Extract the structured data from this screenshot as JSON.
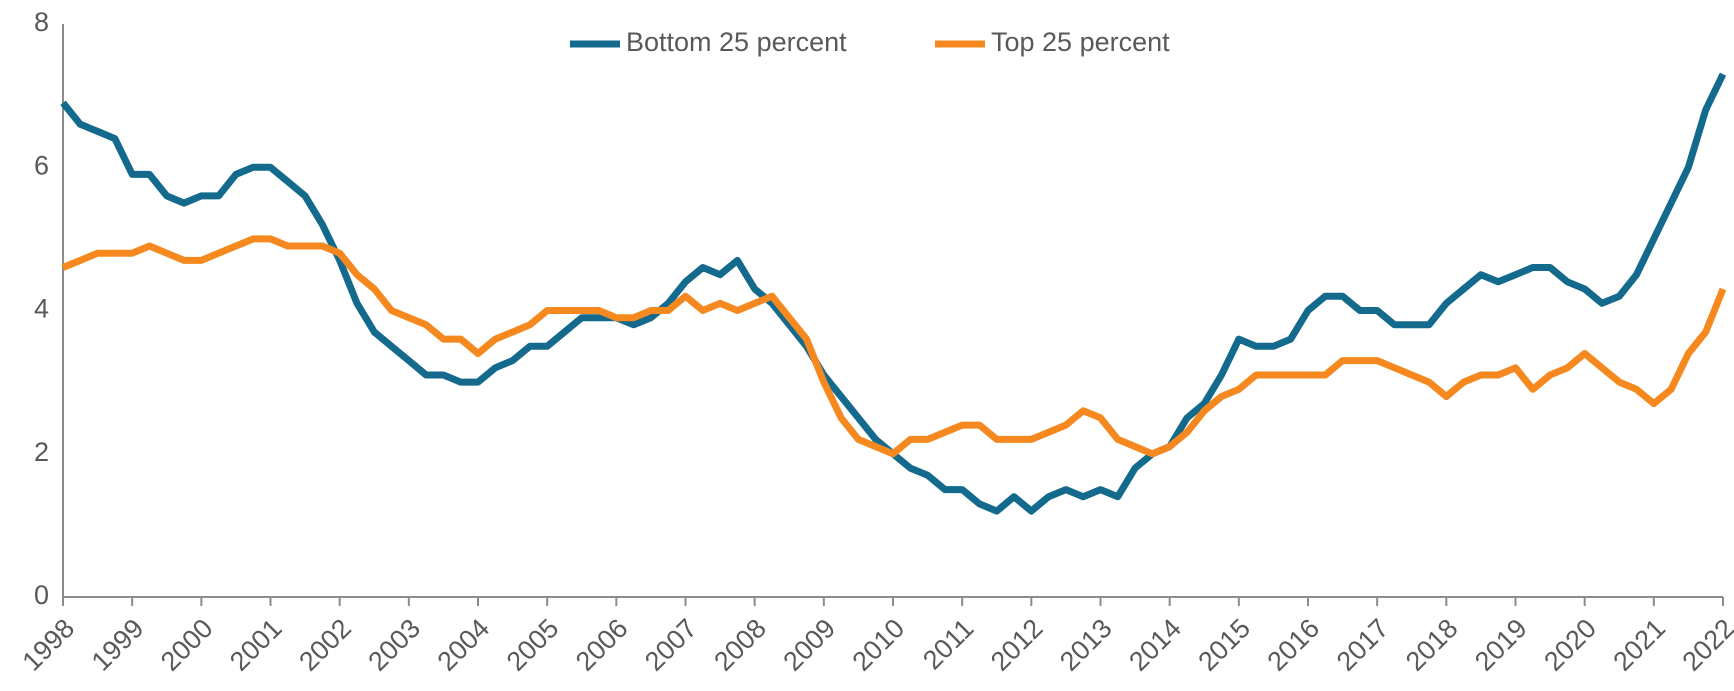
{
  "chart_data": {
    "type": "line",
    "xlim": [
      1998,
      2022
    ],
    "xticks": [
      1998,
      1999,
      2000,
      2001,
      2002,
      2003,
      2004,
      2005,
      2006,
      2007,
      2008,
      2009,
      2010,
      2011,
      2012,
      2013,
      2014,
      2015,
      2016,
      2017,
      2018,
      2019,
      2020,
      2021,
      2022
    ],
    "ylim": [
      0,
      8
    ],
    "yticks": [
      0,
      2,
      4,
      6,
      8
    ],
    "grid": false,
    "legend": "top",
    "x": [
      1998,
      1998.25,
      1998.5,
      1998.75,
      1999,
      1999.25,
      1999.5,
      1999.75,
      2000,
      2000.25,
      2000.5,
      2000.75,
      2001,
      2001.25,
      2001.5,
      2001.75,
      2002,
      2002.25,
      2002.5,
      2002.75,
      2003,
      2003.25,
      2003.5,
      2003.75,
      2004,
      2004.25,
      2004.5,
      2004.75,
      2005,
      2005.25,
      2005.5,
      2005.75,
      2006,
      2006.25,
      2006.5,
      2006.75,
      2007,
      2007.25,
      2007.5,
      2007.75,
      2008,
      2008.25,
      2008.5,
      2008.75,
      2009,
      2009.25,
      2009.5,
      2009.75,
      2010,
      2010.25,
      2010.5,
      2010.75,
      2011,
      2011.25,
      2011.5,
      2011.75,
      2012,
      2012.25,
      2012.5,
      2012.75,
      2013,
      2013.25,
      2013.5,
      2013.75,
      2014,
      2014.25,
      2014.5,
      2014.75,
      2015,
      2015.25,
      2015.5,
      2015.75,
      2016,
      2016.25,
      2016.5,
      2016.75,
      2017,
      2017.25,
      2017.5,
      2017.75,
      2018,
      2018.25,
      2018.5,
      2018.75,
      2019,
      2019.25,
      2019.5,
      2019.75,
      2020,
      2020.25,
      2020.5,
      2020.75,
      2021,
      2021.25,
      2021.5,
      2021.75,
      2022
    ],
    "series": [
      {
        "name": "Bottom 25 percent",
        "color": "#136a8c",
        "values": [
          6.9,
          6.6,
          6.5,
          6.4,
          5.9,
          5.9,
          5.6,
          5.5,
          5.6,
          5.6,
          5.9,
          6.0,
          6.0,
          5.8,
          5.6,
          5.2,
          4.7,
          4.1,
          3.7,
          3.5,
          3.3,
          3.1,
          3.1,
          3.0,
          3.0,
          3.2,
          3.3,
          3.5,
          3.5,
          3.7,
          3.9,
          3.9,
          3.9,
          3.8,
          3.9,
          4.1,
          4.4,
          4.6,
          4.5,
          4.7,
          4.3,
          4.1,
          3.8,
          3.5,
          3.1,
          2.8,
          2.5,
          2.2,
          2.0,
          1.8,
          1.7,
          1.5,
          1.5,
          1.3,
          1.2,
          1.4,
          1.2,
          1.4,
          1.5,
          1.4,
          1.5,
          1.4,
          1.8,
          2.0,
          2.1,
          2.5,
          2.7,
          3.1,
          3.6,
          3.5,
          3.5,
          3.6,
          4.0,
          4.2,
          4.2,
          4.0,
          4.0,
          3.8,
          3.8,
          3.8,
          4.1,
          4.3,
          4.5,
          4.4,
          4.5,
          4.6,
          4.6,
          4.4,
          4.3,
          4.1,
          4.2,
          4.5,
          5.0,
          5.5,
          6.0,
          6.8,
          7.3
        ]
      },
      {
        "name": "Top 25 percent",
        "color": "#f5891f",
        "values": [
          4.6,
          4.7,
          4.8,
          4.8,
          4.8,
          4.9,
          4.8,
          4.7,
          4.7,
          4.8,
          4.9,
          5.0,
          5.0,
          4.9,
          4.9,
          4.9,
          4.8,
          4.5,
          4.3,
          4.0,
          3.9,
          3.8,
          3.6,
          3.6,
          3.4,
          3.6,
          3.7,
          3.8,
          4.0,
          4.0,
          4.0,
          4.0,
          3.9,
          3.9,
          4.0,
          4.0,
          4.2,
          4.0,
          4.1,
          4.0,
          4.1,
          4.2,
          3.9,
          3.6,
          3.0,
          2.5,
          2.2,
          2.1,
          2.0,
          2.2,
          2.2,
          2.3,
          2.4,
          2.4,
          2.2,
          2.2,
          2.2,
          2.3,
          2.4,
          2.6,
          2.5,
          2.2,
          2.1,
          2.0,
          2.1,
          2.3,
          2.6,
          2.8,
          2.9,
          3.1,
          3.1,
          3.1,
          3.1,
          3.1,
          3.3,
          3.3,
          3.3,
          3.2,
          3.1,
          3.0,
          2.8,
          3.0,
          3.1,
          3.1,
          3.2,
          2.9,
          3.1,
          3.2,
          3.4,
          3.2,
          3.0,
          2.9,
          2.7,
          2.9,
          3.4,
          3.7,
          4.3
        ]
      }
    ]
  }
}
